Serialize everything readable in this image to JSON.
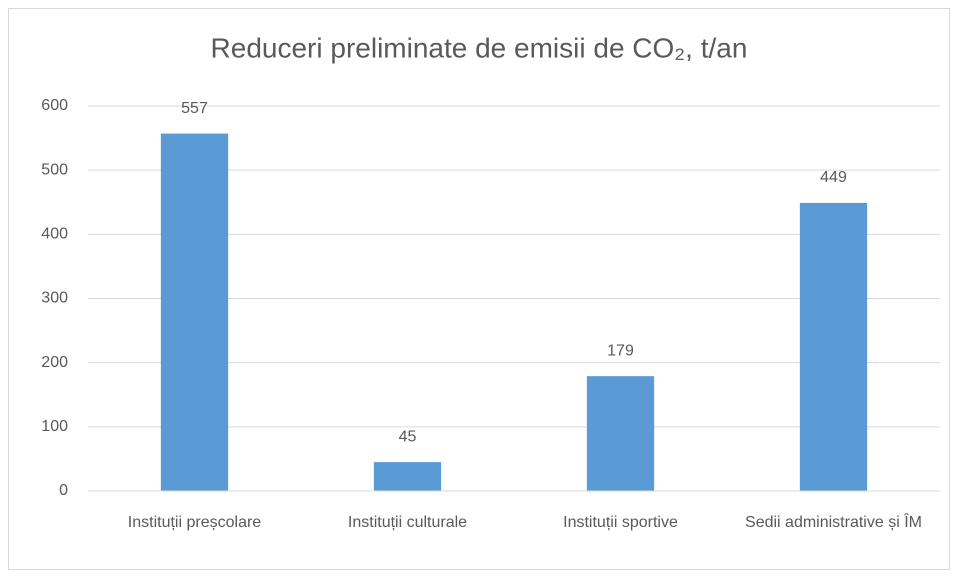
{
  "chart_data": {
    "type": "bar",
    "title": "Reduceri preliminate de emisii de CO₂, t/an",
    "categories": [
      "Instituții preșcolare",
      "Instituții culturale",
      "Instituții sportive",
      "Sedii administrative și ÎM"
    ],
    "values": [
      557,
      45,
      179,
      449
    ],
    "color": "#5b9bd5",
    "ylim": [
      0,
      600
    ],
    "yticks": [
      0,
      100,
      200,
      300,
      400,
      500,
      600
    ],
    "grid": true
  }
}
